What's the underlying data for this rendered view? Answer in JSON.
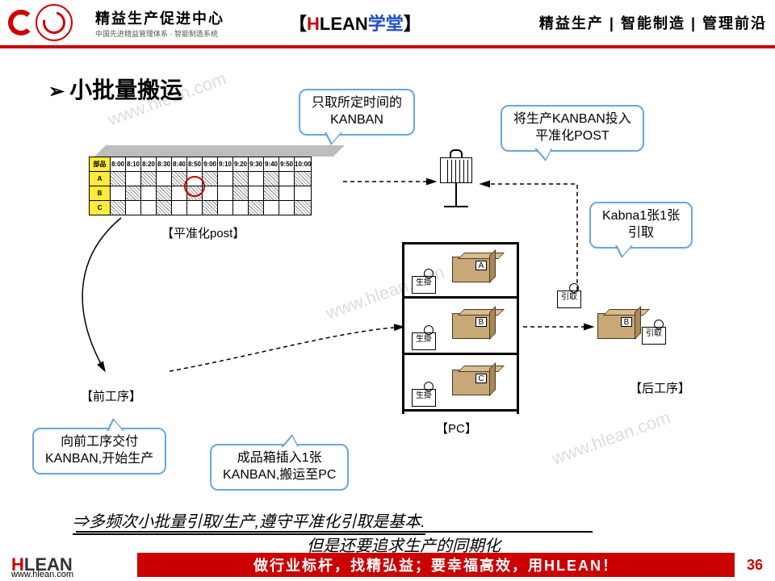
{
  "header": {
    "logo_cn": "精益生产促进中心",
    "logo_sub": "中国先进精益管理体系 · 智能制造系统",
    "mid_h": "H",
    "mid_lean": "LEAN",
    "mid_school": "学堂",
    "right": "精益生产 | 智能制造 | 管理前沿"
  },
  "title": "小批量搬运",
  "callouts": {
    "c1_l1": "只取所定时间的",
    "c1_l2": "KANBAN",
    "c2_l1": "将生产KANBAN投入",
    "c2_l2": "平准化POST",
    "c3_l1": "Kabna1张1张",
    "c3_l2": "引取",
    "c4_l1": "向前工序交付",
    "c4_l2": "KANBAN,开始生产",
    "c5_l1": "成品箱插入1张",
    "c5_l2": "KANBAN,搬运至PC"
  },
  "heijunka": {
    "header_first": "部品",
    "times": [
      "8:00",
      "8:10",
      "8:20",
      "8:30",
      "8:40",
      "8:50",
      "9:00",
      "9:10",
      "9:20",
      "9:30",
      "9:40",
      "9:50",
      "10:00"
    ],
    "rows": [
      "A",
      "B",
      "C"
    ],
    "pattern": {
      "A": [
        1,
        0,
        1,
        0,
        1,
        0,
        1,
        0,
        1,
        0,
        1,
        0,
        1
      ],
      "B": [
        0,
        1,
        0,
        1,
        0,
        1,
        0,
        0,
        1,
        0,
        1,
        0,
        0
      ],
      "C": [
        1,
        0,
        0,
        1,
        0,
        0,
        1,
        0,
        0,
        1,
        0,
        0,
        1
      ]
    },
    "label": "【平准化post】"
  },
  "labels": {
    "front": "【前工序】",
    "rear": "【后工序】",
    "pc": "【PC】",
    "seikake": "生掛",
    "hikitori": "引取"
  },
  "boxes": {
    "a": "A",
    "b": "B",
    "c": "C"
  },
  "conclusion": {
    "line1": "⇒多频次小批量引取/生产,遵守平准化引取是基本.",
    "line2": "但是还要追求生产的同期化"
  },
  "footer": {
    "h": "H",
    "lean": "LEAN",
    "url": "www.hlean.com",
    "band": "做行业标杆，找精弘益；要幸福高效，用HLEAN！",
    "page": "36"
  },
  "watermark": "www.hlean.com",
  "colors": {
    "brand_red": "#c00",
    "callout_border": "#6aa5e0",
    "box_fill": "#c9a878"
  }
}
